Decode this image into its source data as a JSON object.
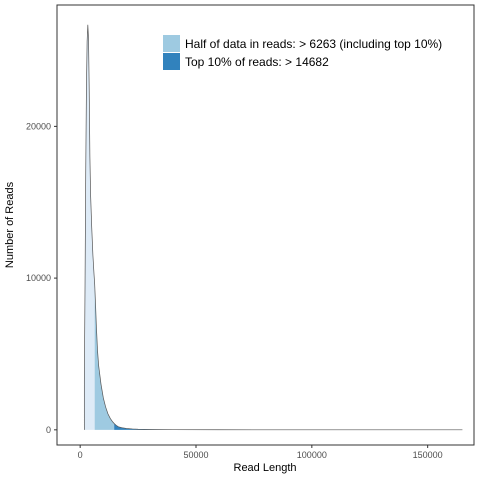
{
  "chart_data": {
    "type": "area",
    "xlabel": "Read Length",
    "ylabel": "Number of Reads",
    "xlim": [
      -10000,
      170000
    ],
    "ylim": [
      -1000,
      28000
    ],
    "x_ticks": [
      0,
      50000,
      100000,
      150000
    ],
    "x_tick_labels": [
      "0",
      "50000",
      "100000",
      "150000"
    ],
    "y_ticks": [
      0,
      10000,
      20000
    ],
    "y_tick_labels": [
      "0",
      "10000",
      "20000"
    ],
    "grid": false,
    "legend_position": "top-right",
    "legend": [
      {
        "label": "Half of data in reads: > 6263 (including top 10%)",
        "color": "#9ecae1"
      },
      {
        "label": "Top 10% of reads: > 14682",
        "color": "#3182bd"
      }
    ],
    "thresholds": {
      "half": 6263,
      "top10": 14682
    },
    "colors": {
      "base": "#deebf7",
      "half": "#9ecae1",
      "top10": "#3182bd",
      "outline": "#555555"
    },
    "series": [
      {
        "x": [
          1800,
          2100,
          2400,
          2700,
          3000,
          3300,
          3600,
          3900,
          4200,
          4500,
          5000,
          5500,
          6000,
          6263,
          6600,
          7000,
          7500,
          8000,
          9000,
          10000,
          11000,
          12000,
          13000,
          14000,
          14682,
          15500,
          16500,
          18000,
          20000,
          22500,
          25000,
          30000,
          40000,
          60000,
          100000,
          165000
        ],
        "values": [
          3300,
          9500,
          17000,
          22500,
          25600,
          26700,
          25800,
          22500,
          18000,
          15500,
          13300,
          11500,
          10200,
          9600,
          8400,
          6800,
          5200,
          4200,
          3000,
          2100,
          1500,
          1050,
          750,
          530,
          420,
          300,
          200,
          140,
          90,
          60,
          40,
          20,
          8,
          3,
          1,
          0
        ]
      }
    ]
  }
}
